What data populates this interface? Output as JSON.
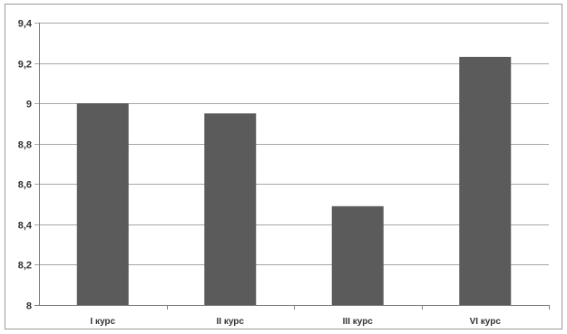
{
  "chart_data": {
    "type": "bar",
    "categories": [
      "I курс",
      "II курс",
      "III курс",
      "VI курс"
    ],
    "values": [
      9.0,
      8.95,
      8.49,
      9.23
    ],
    "y_tick_labels": [
      "8",
      "8,2",
      "8,4",
      "8,6",
      "8,8",
      "9",
      "9,2",
      "9,4"
    ],
    "y_ticks": [
      8,
      8.2,
      8.4,
      8.6,
      8.8,
      9,
      9.2,
      9.4
    ],
    "ylim": [
      8,
      9.4
    ],
    "grid": true,
    "legend": "none",
    "title": "",
    "xlabel": "",
    "ylabel": "",
    "colors": {
      "bar": "#5b5b5b",
      "grid": "#a6a6a6",
      "axis": "#7f7f7f"
    }
  }
}
